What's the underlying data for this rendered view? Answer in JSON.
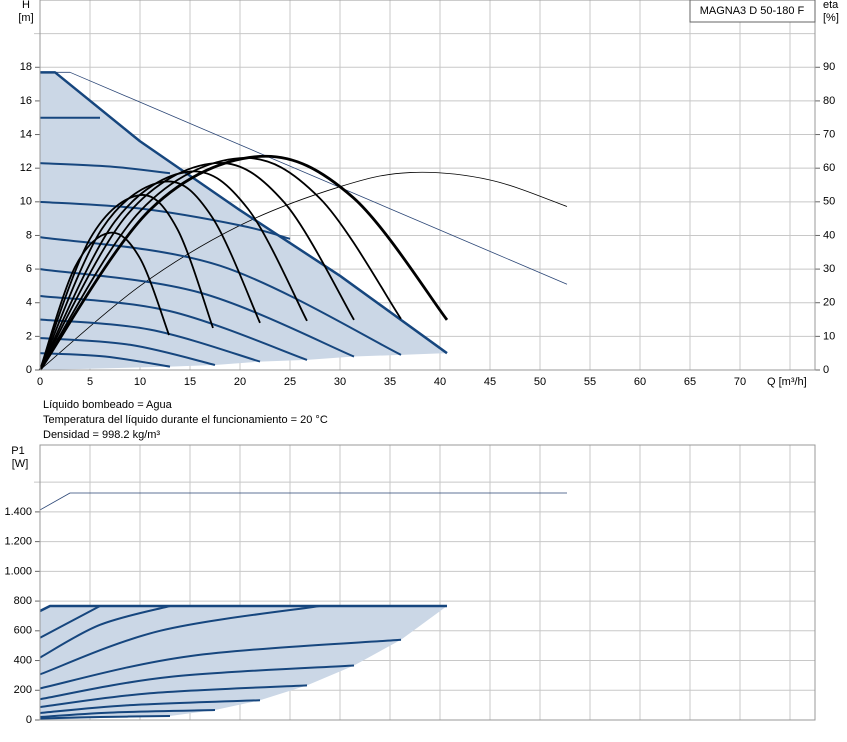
{
  "chart_data": [
    {
      "type": "line",
      "title": "MAGNA3 D 50-180 F",
      "ylabel": [
        "H",
        "[m]"
      ],
      "y2label": [
        "eta",
        "[%]"
      ],
      "xlabel": "Q [m³/h]",
      "xlim": [
        0,
        77.5
      ],
      "xticks": [
        0,
        5,
        10,
        15,
        20,
        25,
        30,
        35,
        40,
        45,
        50,
        55,
        60,
        65,
        70
      ],
      "xgrid_unlabeled": [
        75
      ],
      "ylim": [
        0,
        22
      ],
      "yticks": [
        0,
        2,
        4,
        6,
        8,
        10,
        12,
        14,
        16,
        18
      ],
      "ygrid_unlabeled": [
        20
      ],
      "y2lim": [
        0,
        110
      ],
      "y2ticks": [
        0,
        10,
        20,
        30,
        40,
        50,
        60,
        70,
        80,
        90
      ],
      "grid": true,
      "notes": [
        "Líquido bombeado = Agua",
        "Temperatura del líquido durante el funcionamiento = 20 °C",
        "Densidad = 998.2 kg/m³"
      ],
      "areas": [
        {
          "color": "#cbd7e6",
          "x": [
            0,
            0,
            1.5,
            10,
            20,
            30,
            40.7,
            36.1,
            31.4,
            26.7,
            22,
            17.5,
            13
          ],
          "values": [
            0,
            17.7,
            17.7,
            13.6,
            9.5,
            5.6,
            1.0,
            0.9,
            0.8,
            0.6,
            0.5,
            0.3,
            0.2
          ]
        }
      ],
      "series": [
        {
          "color": "#2b4676",
          "line_width": 0.8,
          "smooth": false,
          "x": [
            0,
            3,
            52.7
          ],
          "values": [
            17.7,
            17.7,
            5.1
          ]
        },
        {
          "color": "#000000",
          "line_width": 0.8,
          "axis": "y2",
          "x": [
            0,
            10,
            20,
            30,
            37,
            45,
            52.7
          ],
          "values": [
            0,
            25,
            43,
            54.5,
            58.7,
            56.5,
            48.6
          ]
        },
        {
          "color": "#16467e",
          "line_width": 2,
          "x": [
            0,
            6.5,
            13
          ],
          "values": [
            1.0,
            0.8,
            0.2
          ]
        },
        {
          "color": "#16467e",
          "line_width": 2,
          "x": [
            0,
            9,
            17.5
          ],
          "values": [
            1.9,
            1.5,
            0.3
          ]
        },
        {
          "color": "#16467e",
          "line_width": 2,
          "x": [
            0,
            11,
            22
          ],
          "values": [
            3.0,
            2.4,
            0.5
          ]
        },
        {
          "color": "#16467e",
          "line_width": 2,
          "x": [
            0,
            13,
            26.7
          ],
          "values": [
            4.4,
            3.5,
            0.6
          ]
        },
        {
          "color": "#16467e",
          "line_width": 2,
          "x": [
            0,
            16,
            31.4
          ],
          "values": [
            6.0,
            4.6,
            0.8
          ]
        },
        {
          "color": "#16467e",
          "line_width": 2,
          "x": [
            0,
            18,
            36.1
          ],
          "values": [
            7.9,
            6.2,
            0.9
          ]
        },
        {
          "color": "#16467e",
          "line_width": 2,
          "x": [
            0,
            10,
            20,
            25
          ],
          "values": [
            10,
            9.6,
            8.6,
            7.8
          ]
        },
        {
          "color": "#16467e",
          "line_width": 2,
          "x": [
            0,
            7,
            13
          ],
          "values": [
            12.3,
            12.1,
            11.7
          ]
        },
        {
          "color": "#16467e",
          "line_width": 2,
          "x": [
            0,
            6
          ],
          "values": [
            15,
            15
          ]
        },
        {
          "color": "#16467e",
          "line_width": 2.5,
          "smooth": false,
          "x": [
            0,
            1.5,
            10,
            20,
            30,
            40.7
          ],
          "values": [
            17.7,
            17.7,
            13.6,
            9.5,
            5.6,
            1.0
          ]
        },
        {
          "color": "#000000",
          "line_width": 1.8,
          "axis": "y2",
          "x": [
            0,
            3.5,
            7,
            10,
            12.9
          ],
          "values": [
            0,
            30.6,
            40.8,
            33.2,
            10.4
          ]
        },
        {
          "color": "#000000",
          "line_width": 1.8,
          "axis": "y2",
          "x": [
            0,
            5,
            10,
            13.7,
            17.3
          ],
          "values": [
            0,
            39,
            52,
            42.1,
            12.5
          ]
        },
        {
          "color": "#000000",
          "line_width": 1.8,
          "axis": "y2",
          "x": [
            0,
            6.2,
            12.5,
            17.2,
            22
          ],
          "values": [
            0,
            42,
            56,
            45.5,
            14
          ]
        },
        {
          "color": "#000000",
          "line_width": 1.8,
          "axis": "y2",
          "x": [
            0,
            7.5,
            15,
            20.8,
            26.7
          ],
          "values": [
            0,
            44.2,
            59,
            47.9,
            14.6
          ]
        },
        {
          "color": "#000000",
          "line_width": 1.8,
          "axis": "y2",
          "x": [
            0,
            8.7,
            17.5,
            24.4,
            31.4
          ],
          "values": [
            0,
            46.1,
            61.5,
            49.9,
            14.9
          ]
        },
        {
          "color": "#000000",
          "line_width": 1.8,
          "axis": "y2",
          "x": [
            0,
            10,
            20,
            28,
            36.1
          ],
          "values": [
            0,
            47.2,
            63,
            51,
            15.2
          ]
        },
        {
          "color": "#000000",
          "line_width": 2.8,
          "axis": "y2",
          "x": [
            0,
            11,
            22,
            31.3,
            40.7
          ],
          "values": [
            0,
            47.6,
            63.5,
            51.3,
            14.9
          ]
        }
      ]
    },
    {
      "type": "line",
      "ylabel": [
        "P1",
        "[W]"
      ],
      "xlim": [
        0,
        77.5
      ],
      "xgrid_unlabeled": [
        0,
        5,
        10,
        15,
        20,
        25,
        30,
        35,
        40,
        45,
        50,
        55,
        60,
        65,
        70,
        75
      ],
      "ylim": [
        0,
        1850
      ],
      "yticks": [
        0,
        200,
        400,
        600,
        800,
        {
          "value": 1000,
          "label": "1.000"
        },
        {
          "value": 1200,
          "label": "1.200"
        },
        {
          "value": 1400,
          "label": "1.400"
        }
      ],
      "ygrid_unlabeled": [
        1600
      ],
      "grid": true,
      "areas": [
        {
          "color": "#cbd7e6",
          "x": [
            0,
            0,
            1,
            40.7,
            36.1,
            31.4,
            26.7,
            22,
            17.5,
            13
          ],
          "values": [
            0,
            733,
            767,
            767,
            540,
            367,
            233,
            133,
            67,
            27
          ]
        }
      ],
      "series": [
        {
          "color": "#2b4676",
          "line_width": 0.8,
          "smooth": false,
          "x": [
            0,
            3,
            52.7
          ],
          "values": [
            1413,
            1527,
            1527
          ]
        },
        {
          "color": "#16467e",
          "line_width": 2,
          "x": [
            0,
            6,
            13
          ],
          "values": [
            10,
            20,
            27
          ]
        },
        {
          "color": "#16467e",
          "line_width": 2,
          "x": [
            0,
            7,
            17.5
          ],
          "values": [
            20,
            50,
            67
          ]
        },
        {
          "color": "#16467e",
          "line_width": 2,
          "x": [
            0,
            9,
            22
          ],
          "values": [
            47,
            100,
            133
          ]
        },
        {
          "color": "#16467e",
          "line_width": 2,
          "x": [
            0,
            11,
            26.7
          ],
          "values": [
            87,
            180,
            233
          ]
        },
        {
          "color": "#16467e",
          "line_width": 2,
          "x": [
            0,
            13,
            31.4
          ],
          "values": [
            140,
            290,
            367
          ]
        },
        {
          "color": "#16467e",
          "line_width": 2,
          "x": [
            0,
            15,
            36.1
          ],
          "values": [
            213,
            430,
            540
          ]
        },
        {
          "color": "#16467e",
          "line_width": 2,
          "x": [
            0,
            12,
            28
          ],
          "values": [
            307,
            600,
            767
          ]
        },
        {
          "color": "#16467e",
          "line_width": 2,
          "x": [
            0,
            6,
            13
          ],
          "values": [
            420,
            640,
            767
          ]
        },
        {
          "color": "#16467e",
          "line_width": 2,
          "x": [
            0,
            3,
            6
          ],
          "values": [
            553,
            660,
            767
          ]
        },
        {
          "color": "#16467e",
          "line_width": 2.5,
          "smooth": false,
          "x": [
            0,
            1,
            40.7
          ],
          "values": [
            733,
            767,
            767
          ]
        }
      ]
    }
  ]
}
